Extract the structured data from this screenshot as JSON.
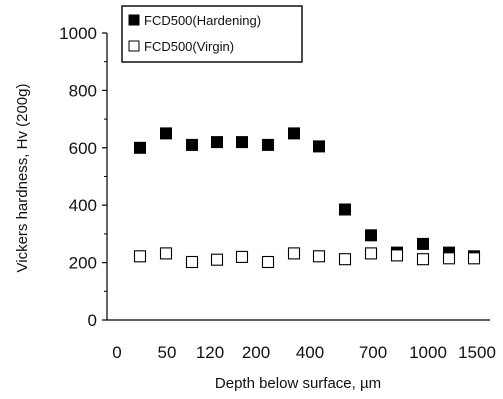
{
  "chart_data": {
    "type": "scatter",
    "title": "",
    "xlabel": "Depth below surface, µm",
    "ylabel": "Vickers hardness, Hv (200g)",
    "ylim": [
      0,
      1000
    ],
    "y_ticks": [
      0,
      200,
      400,
      600,
      800,
      1000
    ],
    "x_tick_labels": [
      "0",
      "50",
      "120",
      "200",
      "400",
      "700",
      "1000",
      "1500"
    ],
    "grid": false,
    "legend": "top-left",
    "series": [
      {
        "name": "FCD500(Hardening)",
        "marker": "filled-square",
        "color": "#000000",
        "points": [
          {
            "x": "25",
            "y": 600
          },
          {
            "x": "45",
            "y": 650
          },
          {
            "x": "80",
            "y": 610
          },
          {
            "x": "120",
            "y": 620
          },
          {
            "x": "160",
            "y": 620
          },
          {
            "x": "200",
            "y": 610
          },
          {
            "x": "280",
            "y": 650
          },
          {
            "x": "360",
            "y": 605
          },
          {
            "x": "500",
            "y": 385
          },
          {
            "x": "700",
            "y": 295
          },
          {
            "x": "850",
            "y": 235
          },
          {
            "x": "1050",
            "y": 265
          },
          {
            "x": "1250",
            "y": 235
          },
          {
            "x": "1500",
            "y": 222
          }
        ]
      },
      {
        "name": "FCD500(Virgin)",
        "marker": "open-square",
        "color": "#000000",
        "points": [
          {
            "x": "25",
            "y": 222
          },
          {
            "x": "45",
            "y": 232
          },
          {
            "x": "80",
            "y": 202
          },
          {
            "x": "120",
            "y": 210
          },
          {
            "x": "160",
            "y": 220
          },
          {
            "x": "200",
            "y": 202
          },
          {
            "x": "280",
            "y": 232
          },
          {
            "x": "360",
            "y": 222
          },
          {
            "x": "500",
            "y": 212
          },
          {
            "x": "700",
            "y": 232
          },
          {
            "x": "850",
            "y": 225
          },
          {
            "x": "1050",
            "y": 212
          },
          {
            "x": "1250",
            "y": 215
          },
          {
            "x": "1500",
            "y": 215
          }
        ]
      }
    ]
  }
}
